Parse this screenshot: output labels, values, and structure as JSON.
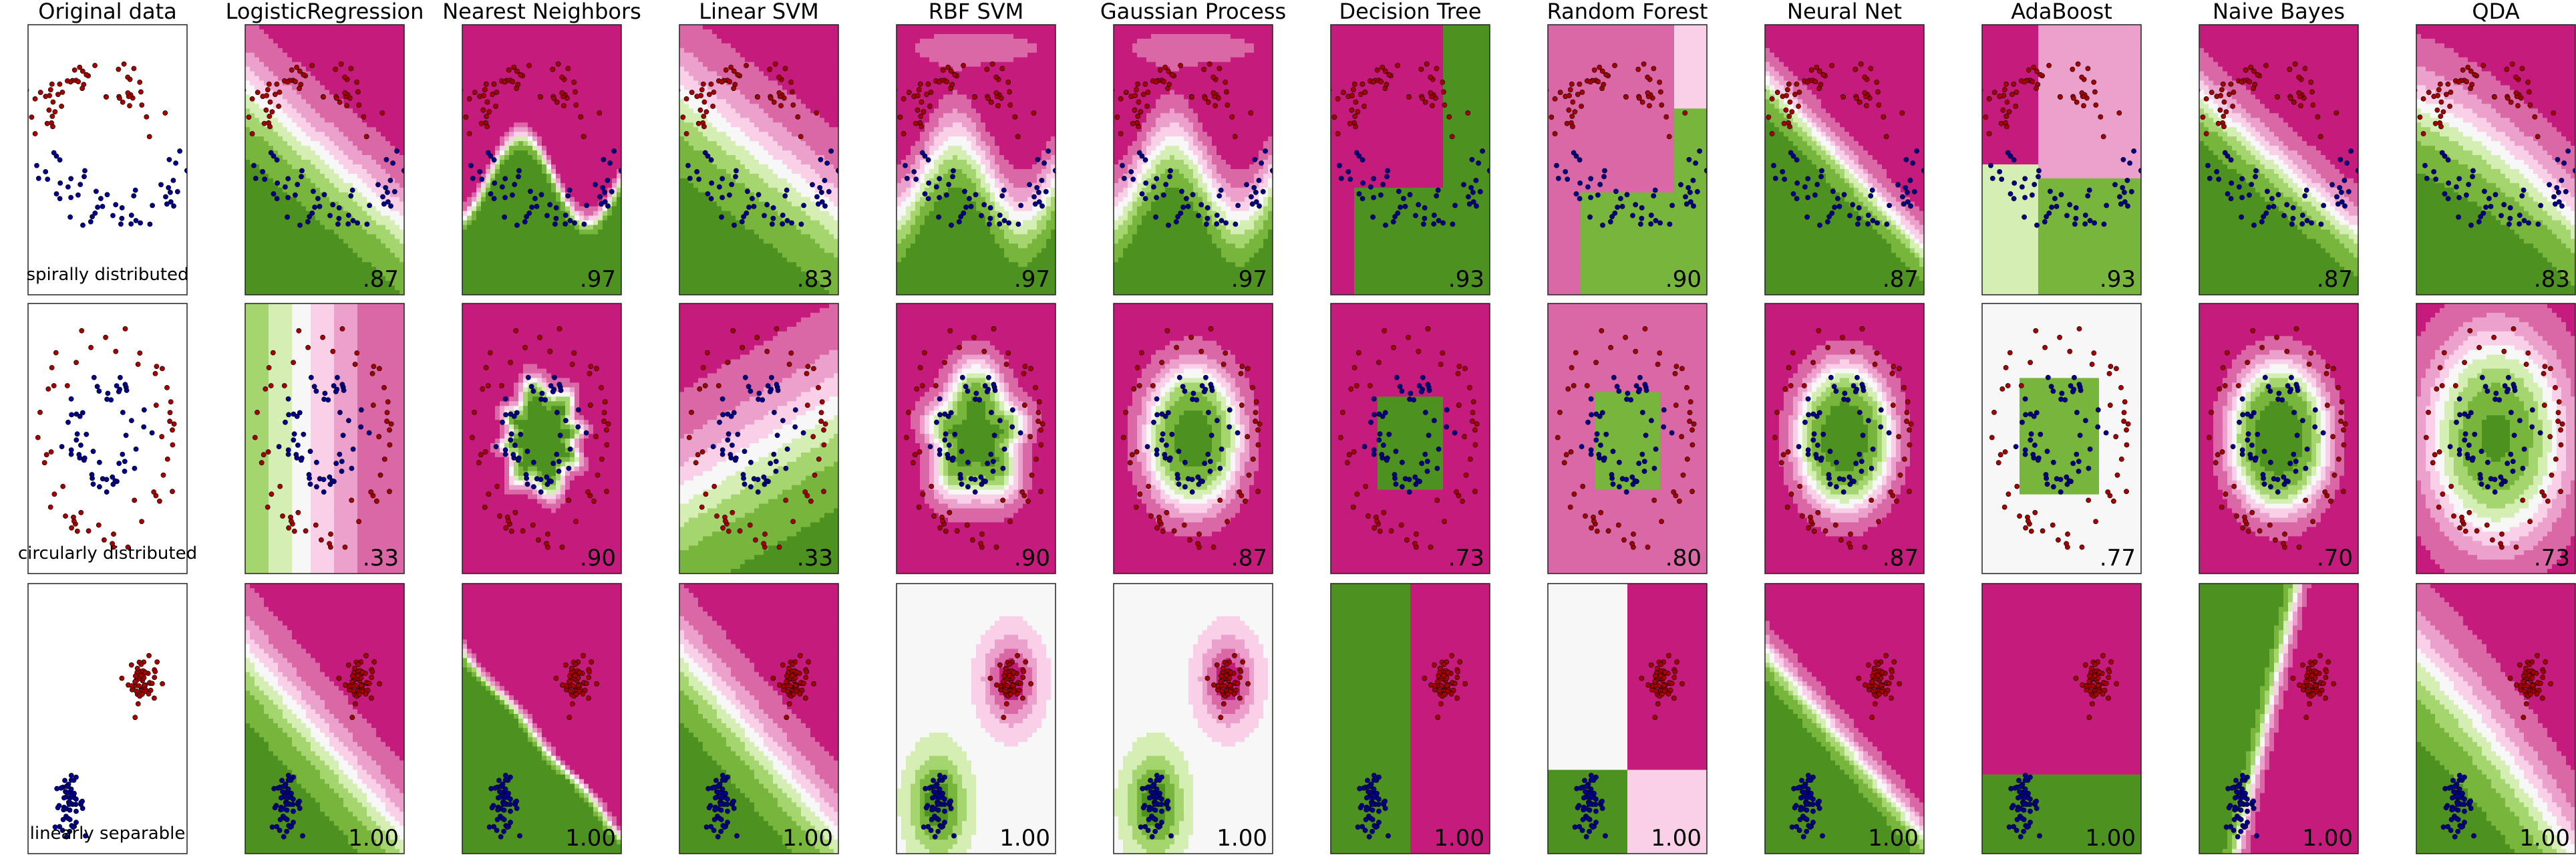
{
  "chart_data": {
    "type": "scatter",
    "title": "",
    "columns": [
      "Original data",
      "LogisticRegression",
      "Nearest Neighbors",
      "Linear SVM",
      "RBF SVM",
      "Gaussian Process",
      "Decision Tree",
      "Random Forest",
      "Neural Net",
      "AdaBoost",
      "Naive Bayes",
      "QDA"
    ],
    "datasets": [
      "spirally distributed",
      "circularly distributed",
      "linearly separable"
    ],
    "scores": [
      [
        "",
        ".87",
        ".97",
        ".83",
        ".97",
        ".97",
        ".93",
        ".90",
        ".87",
        ".93",
        ".87",
        ".83"
      ],
      [
        "",
        ".33",
        ".90",
        ".33",
        ".90",
        ".87",
        ".73",
        ".80",
        ".87",
        ".77",
        ".70",
        ".73"
      ],
      [
        "",
        "1.00",
        "1.00",
        "1.00",
        "1.00",
        "1.00",
        "1.00",
        "1.00",
        "1.00",
        "1.00",
        "1.00",
        "1.00"
      ]
    ],
    "legend": "none",
    "grid": false,
    "classes": [
      "red",
      "blue"
    ],
    "colors": {
      "class_red": "#a50000",
      "class_blue": "#00008b",
      "region_red": "#c2397f",
      "region_green": "#4c9a2a",
      "neutral": "#f7f7f7"
    }
  }
}
